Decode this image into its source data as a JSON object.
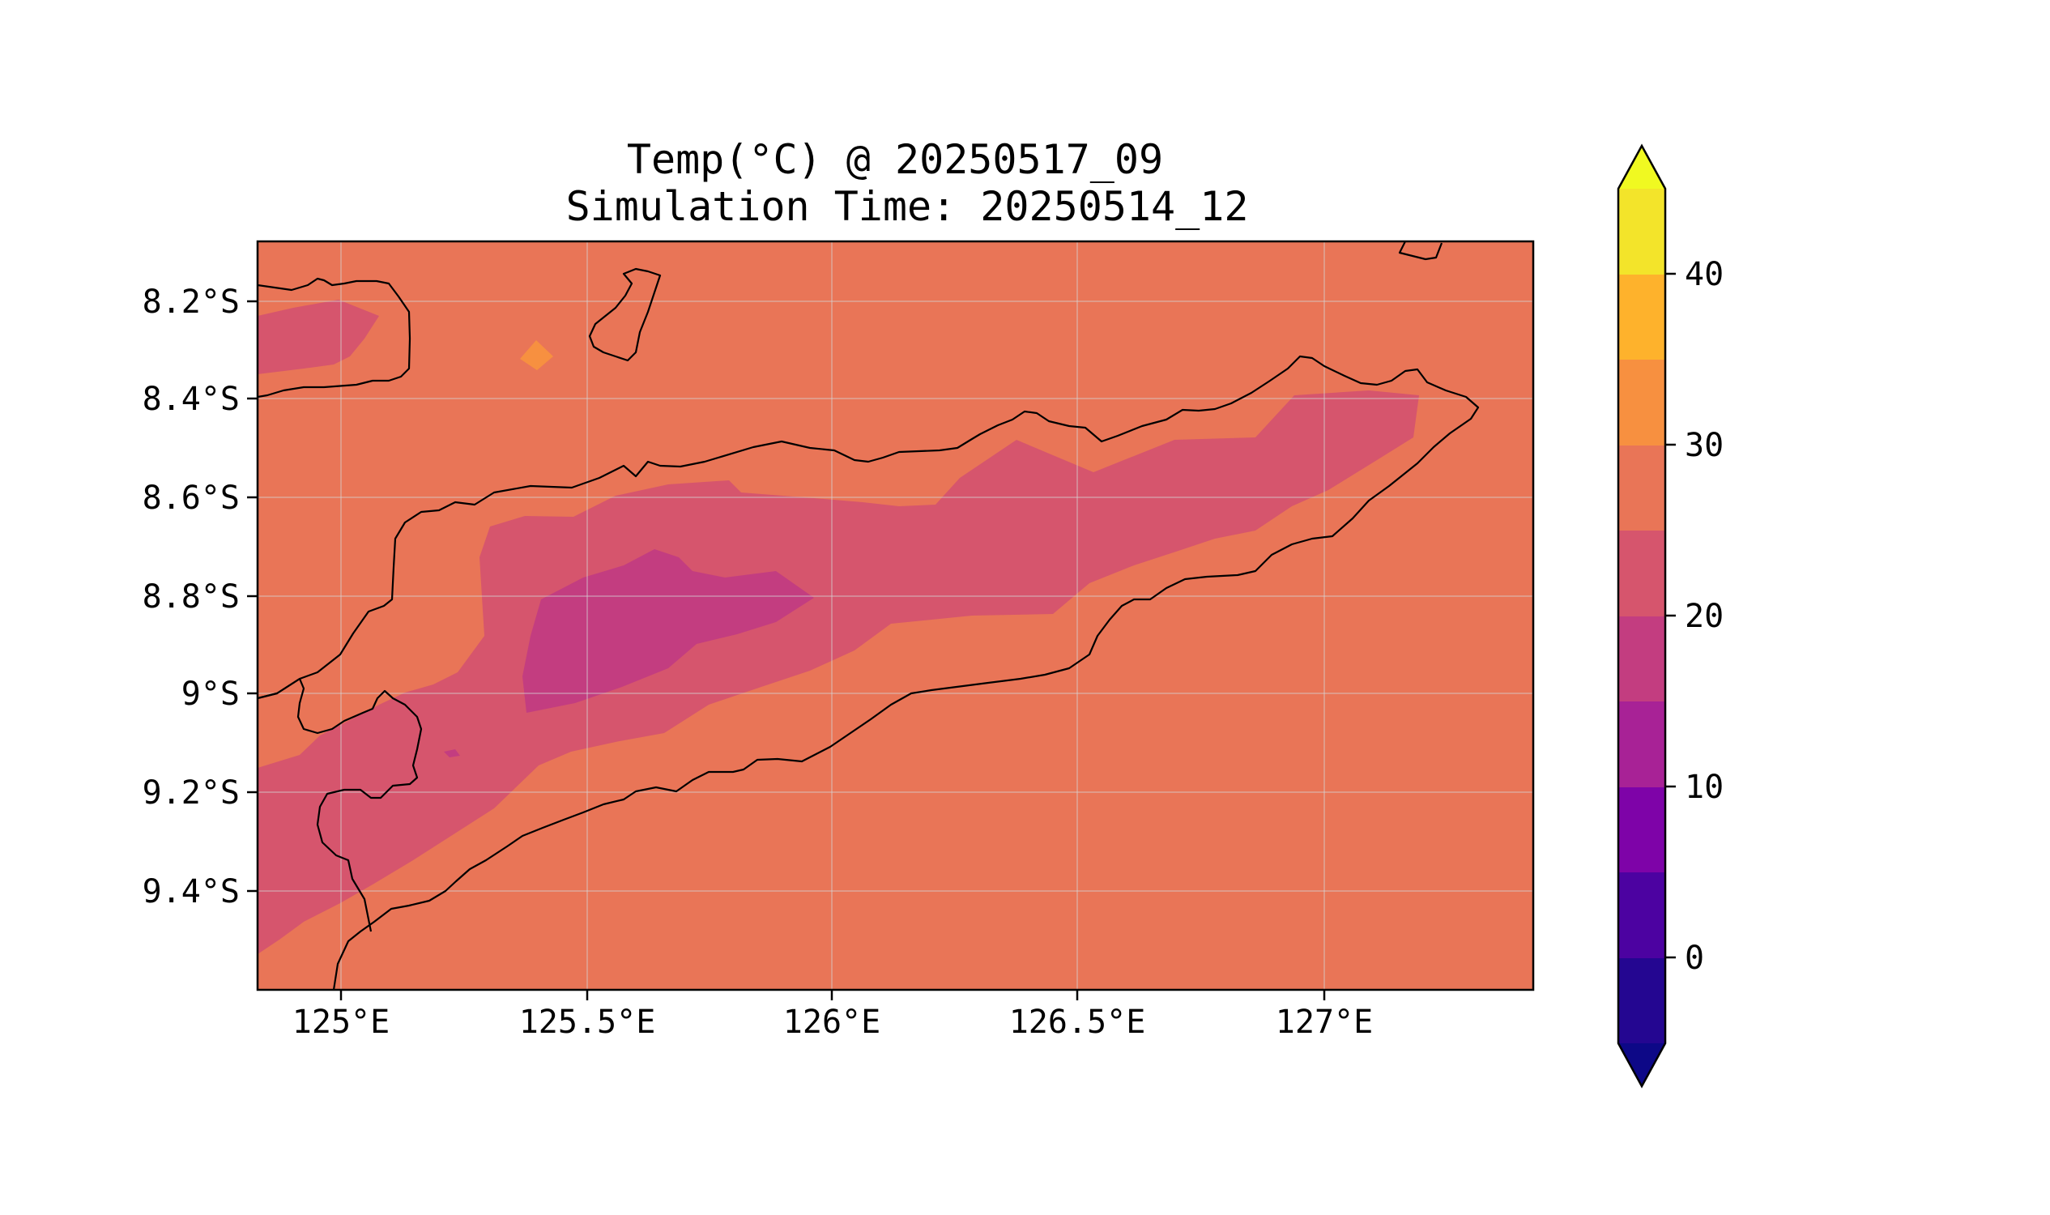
{
  "title": "Temp(°C) @ 20250517_09",
  "subtitle": "Simulation Time: 20250514_12",
  "map": {
    "x_ticks": [
      "125°E",
      "125.5°E",
      "126°E",
      "126.5°E",
      "127°E"
    ],
    "y_ticks": [
      "8.2°S",
      "8.4°S",
      "8.6°S",
      "8.8°S",
      "9°S",
      "9.2°S",
      "9.4°S"
    ],
    "lon_range": [
      124.83,
      127.42
    ],
    "lat_range": [
      -9.6,
      -8.08
    ],
    "gridlines": true,
    "background_color": "#e97557"
  },
  "colorbar": {
    "ticks": [
      "0",
      "10",
      "20",
      "30",
      "40"
    ],
    "levels": [
      -5,
      0,
      5,
      10,
      15,
      20,
      25,
      30,
      35,
      40,
      45
    ],
    "colors": [
      "#240691",
      "#4c02a1",
      "#7e03a8",
      "#a82296",
      "#c33d80",
      "#d6556d",
      "#e97557",
      "#f79040",
      "#feb22c",
      "#f3e42a"
    ],
    "extend_low_color": "#0d0887",
    "extend_high_color": "#f0f921"
  }
}
